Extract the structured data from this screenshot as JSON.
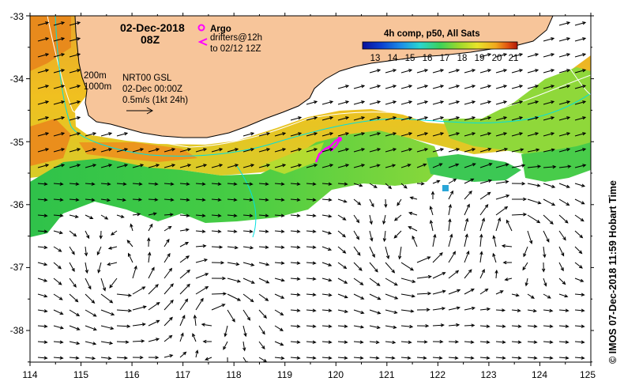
{
  "map": {
    "date": "02-Dec-2018",
    "hour": "08Z",
    "legend": {
      "argo": "Argo",
      "drifters_line1": "drifters@12h",
      "drifters_line2": "to 02/12 12Z"
    },
    "contours": {
      "c200": "200m",
      "c1000": "1000m"
    },
    "current_info": {
      "line1": "NRT00 GSL",
      "line2": "02-Dec 00:00Z",
      "line3": "0.5m/s (1kt 24h)"
    },
    "colorbar": {
      "title": "4h comp, p50, All Sats",
      "ticks": [
        "13",
        "14",
        "15",
        "16",
        "17",
        "18",
        "19",
        "20",
        "21"
      ],
      "colors": [
        "#08109a",
        "#0a3fd0",
        "#1c8ee8",
        "#2ad6d0",
        "#3ad25a",
        "#9ad82c",
        "#e8e42a",
        "#f0a81c",
        "#e05010",
        "#b01808"
      ]
    },
    "credit": "© IMOS 07-Dec-2018 11:59 Hobart Time",
    "x_ticks": [
      "114",
      "115",
      "116",
      "117",
      "118",
      "119",
      "120",
      "121",
      "122",
      "123",
      "124",
      "125"
    ],
    "y_ticks": [
      "-33",
      "-34",
      "-35",
      "-36",
      "-37",
      "-38"
    ],
    "colors": {
      "land": "#f7c59a",
      "argo": "#ff00ff",
      "drifter": "#ff00ff",
      "contour_200": "#ffffff",
      "contour_1000": "#00e0e0"
    }
  }
}
